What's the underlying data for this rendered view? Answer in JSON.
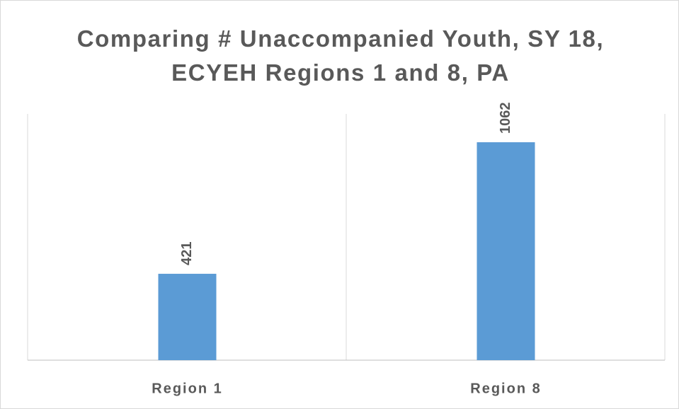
{
  "chart_data": {
    "type": "bar",
    "title": "Comparing # Unaccompanied Youth, SY 18, ECYEH Regions 1 and 8, PA",
    "categories": [
      "Region 1",
      "Region 8"
    ],
    "values": [
      421,
      1062
    ],
    "color": "#5b9bd5",
    "ylim": [
      0,
      1200
    ],
    "data_labels": true
  }
}
